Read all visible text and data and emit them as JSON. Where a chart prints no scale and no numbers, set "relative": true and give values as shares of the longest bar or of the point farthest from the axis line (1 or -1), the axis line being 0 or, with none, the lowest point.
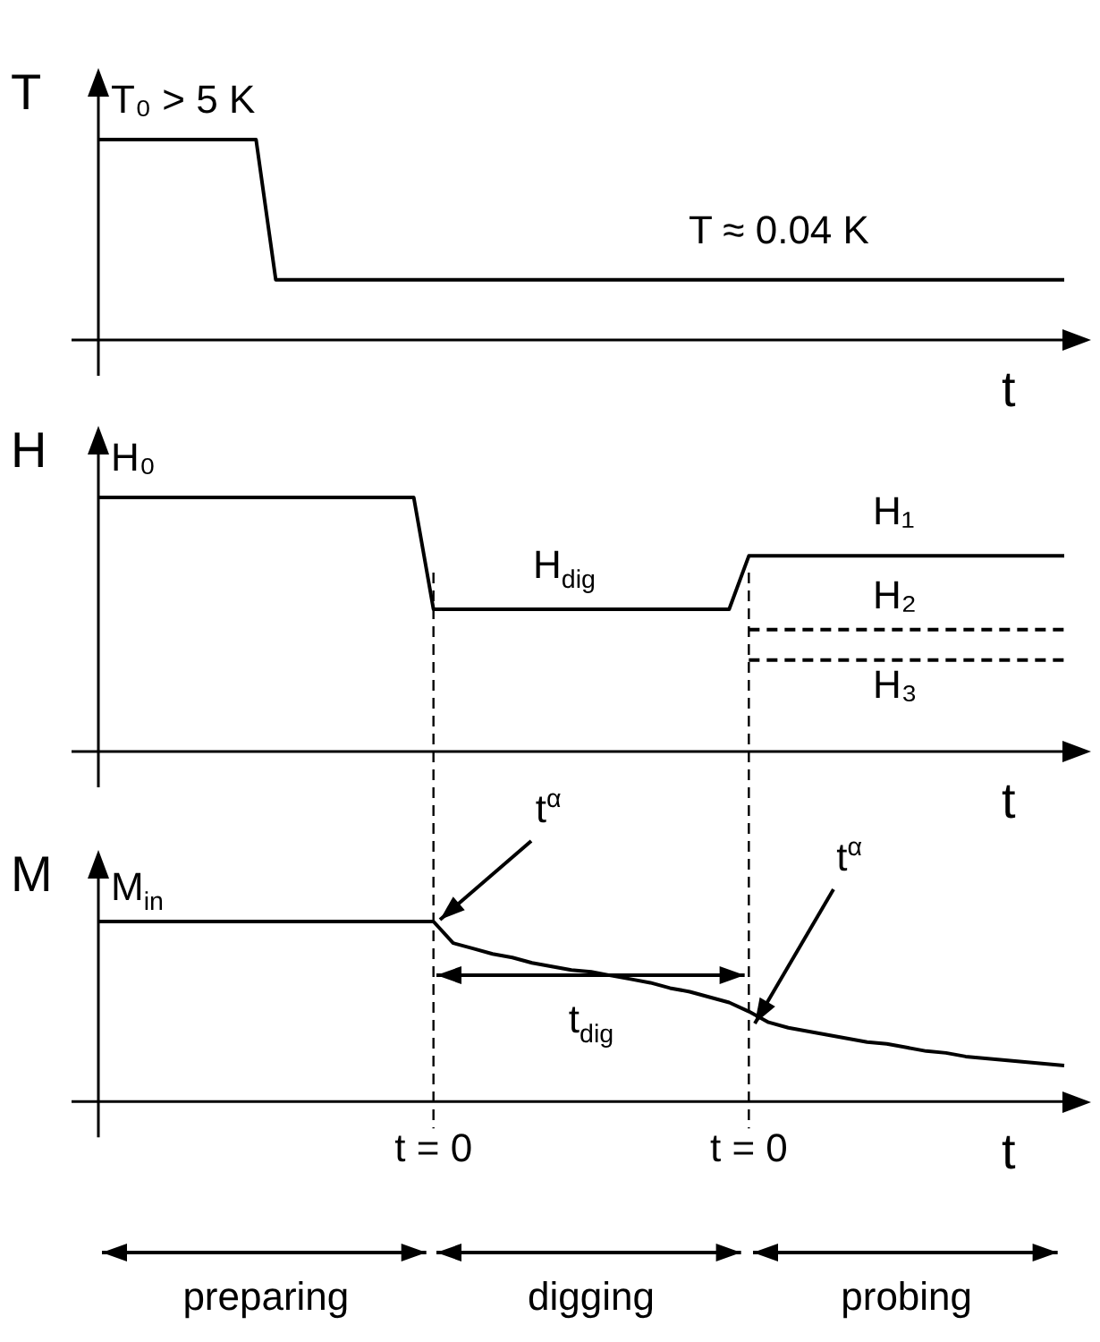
{
  "chart_data": [
    {
      "type": "line",
      "ylabel": "T",
      "xlabel": "t",
      "relative": true,
      "tick_labels": false,
      "marker": "none",
      "categories": [
        null,
        null,
        null,
        null,
        null,
        null,
        null,
        null,
        null,
        null,
        null,
        null,
        null,
        null,
        null,
        null,
        null,
        null,
        null,
        null,
        null,
        null,
        null,
        null,
        null,
        null,
        null,
        null,
        null,
        null,
        null,
        null,
        null,
        null,
        null,
        null,
        null,
        null,
        null,
        null,
        null,
        null,
        null,
        null,
        null,
        null,
        null,
        null,
        null,
        null
      ],
      "series": [
        {
          "color": "#000000",
          "values": [
            1,
            1,
            1,
            1,
            1,
            1,
            1,
            1,
            1,
            0.3,
            0.3,
            0.3,
            0.3,
            0.3,
            0.3,
            0.3,
            0.3,
            0.3,
            0.3,
            0.3,
            0.3,
            0.3,
            0.3,
            0.3,
            0.3,
            0.3,
            0.3,
            0.3,
            0.3,
            0.3,
            0.3,
            0.3,
            0.3,
            0.3,
            0.3,
            0.3,
            0.3,
            0.3,
            0.3,
            0.3,
            0.3,
            0.3,
            0.3,
            0.3,
            0.3,
            0.3,
            0.3,
            0.3,
            0.3,
            0.3
          ]
        }
      ],
      "annotations": [
        "T₀ > 5 K",
        "T ≈ 0.04 K"
      ]
    },
    {
      "type": "line",
      "ylabel": "H",
      "xlabel": "t",
      "relative": true,
      "tick_labels": false,
      "marker": "none",
      "categories": [
        null,
        null,
        null,
        null,
        null,
        null,
        null,
        null,
        null,
        null,
        null,
        null,
        null,
        null,
        null,
        null,
        null,
        null,
        null,
        null,
        null,
        null,
        null,
        null,
        null,
        null,
        null,
        null,
        null,
        null,
        null,
        null,
        null,
        null,
        null,
        null,
        null,
        null,
        null,
        null,
        null,
        null,
        null,
        null,
        null,
        null,
        null,
        null,
        null,
        null
      ],
      "series": [
        {
          "color": "#000000",
          "values": [
            1,
            1,
            1,
            1,
            1,
            1,
            1,
            1,
            1,
            1,
            1,
            1,
            1,
            1,
            1,
            1,
            1,
            0.56,
            0.56,
            0.56,
            0.56,
            0.56,
            0.56,
            0.56,
            0.56,
            0.56,
            0.56,
            0.56,
            0.56,
            0.56,
            0.56,
            0.56,
            0.56,
            0.77,
            0.77,
            0.77,
            0.77,
            0.77,
            0.77,
            0.77,
            0.77,
            0.77,
            0.77,
            0.77,
            0.77,
            0.77,
            0.77,
            0.77,
            0.77,
            0.77
          ]
        },
        {
          "color": "#000000",
          "line_style": "dashed",
          "values": [
            null,
            null,
            null,
            null,
            null,
            null,
            null,
            null,
            null,
            null,
            null,
            null,
            null,
            null,
            null,
            null,
            null,
            null,
            null,
            null,
            null,
            null,
            null,
            null,
            null,
            null,
            null,
            null,
            null,
            null,
            null,
            null,
            null,
            0.48,
            0.48,
            0.48,
            0.48,
            0.48,
            0.48,
            0.48,
            0.48,
            0.48,
            0.48,
            0.48,
            0.48,
            0.48,
            0.48,
            0.48,
            0.48,
            0.48
          ]
        },
        {
          "color": "#000000",
          "line_style": "dashed",
          "values": [
            null,
            null,
            null,
            null,
            null,
            null,
            null,
            null,
            null,
            null,
            null,
            null,
            null,
            null,
            null,
            null,
            null,
            null,
            null,
            null,
            null,
            null,
            null,
            null,
            null,
            null,
            null,
            null,
            null,
            null,
            null,
            null,
            null,
            0.36,
            0.36,
            0.36,
            0.36,
            0.36,
            0.36,
            0.36,
            0.36,
            0.36,
            0.36,
            0.36,
            0.36,
            0.36,
            0.36,
            0.36,
            0.36,
            0.36
          ]
        }
      ],
      "annotations": [
        "H₀",
        "H$_{dig}$",
        "H₁",
        "H₂",
        "H₃"
      ]
    },
    {
      "type": "line",
      "ylabel": "M",
      "xlabel": "t",
      "relative": true,
      "tick_labels": "x",
      "marker": "none",
      "grid": "x",
      "categories": [
        null,
        null,
        null,
        null,
        null,
        null,
        null,
        null,
        null,
        null,
        null,
        null,
        null,
        null,
        null,
        null,
        null,
        "t = 0",
        null,
        null,
        null,
        null,
        null,
        null,
        null,
        null,
        null,
        null,
        null,
        null,
        null,
        null,
        null,
        "t = 0",
        null,
        null,
        null,
        null,
        null,
        null,
        null,
        null,
        null,
        null,
        null,
        null,
        null,
        null,
        null,
        null
      ],
      "series": [
        {
          "color": "#000000",
          "values": [
            1,
            1,
            1,
            1,
            1,
            1,
            1,
            1,
            1,
            1,
            1,
            1,
            1,
            1,
            1,
            1,
            1,
            1,
            0.88,
            0.85,
            0.82,
            0.8,
            0.77,
            0.75,
            0.73,
            0.72,
            0.7,
            0.68,
            0.66,
            0.63,
            0.61,
            0.58,
            0.55,
            0.5,
            0.44,
            0.41,
            0.39,
            0.37,
            0.35,
            0.33,
            0.32,
            0.3,
            0.28,
            0.27,
            0.25,
            0.24,
            0.23,
            0.22,
            0.21,
            0.2
          ]
        }
      ],
      "annotations": [
        "M$_{in}$",
        "t$^{α}$",
        "t$^{α}$",
        "t$_{dig}$",
        "preparing",
        "digging",
        "probing"
      ]
    }
  ]
}
